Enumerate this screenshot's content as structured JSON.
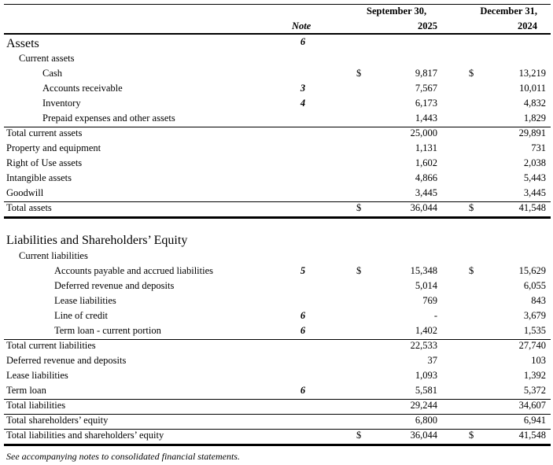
{
  "header": {
    "note_label": "Note",
    "col1_line1": "September 30,",
    "col1_line2": "2025",
    "col2_line1": "December 31,",
    "col2_line2": "2024"
  },
  "rows": [
    {
      "label": "Assets",
      "note": "6"
    },
    {
      "label": "Current assets"
    },
    {
      "label": "Cash",
      "d1": "$",
      "v1": "9,817",
      "d2": "$",
      "v2": "13,219"
    },
    {
      "label": "Accounts receivable",
      "note": "3",
      "v1": "7,567",
      "v2": "10,011"
    },
    {
      "label": "Inventory",
      "note": "4",
      "v1": "6,173",
      "v2": "4,832"
    },
    {
      "label": "Prepaid expenses and other assets",
      "v1": "1,443",
      "v2": "1,829"
    },
    {
      "label": "Total current assets",
      "v1": "25,000",
      "v2": "29,891"
    },
    {
      "label": "Property and equipment",
      "v1": "1,131",
      "v2": "731"
    },
    {
      "label": "Right of Use assets",
      "v1": "1,602",
      "v2": "2,038"
    },
    {
      "label": "Intangible assets",
      "v1": "4,866",
      "v2": "5,443"
    },
    {
      "label": "Goodwill",
      "v1": "3,445",
      "v2": "3,445"
    },
    {
      "label": "Total assets",
      "d1": "$",
      "v1": "36,044",
      "d2": "$",
      "v2": "41,548"
    },
    {
      "label": "Liabilities and Shareholders’ Equity"
    },
    {
      "label": "Current liabilities"
    },
    {
      "label": "Accounts payable and accrued liabilities",
      "note": "5",
      "d1": "$",
      "v1": "15,348",
      "d2": "$",
      "v2": "15,629"
    },
    {
      "label": "Deferred revenue and deposits",
      "v1": "5,014",
      "v2": "6,055"
    },
    {
      "label": "Lease liabilities",
      "v1": "769",
      "v2": "843"
    },
    {
      "label": "Line of credit",
      "note": "6",
      "v1": "-",
      "v2": "3,679"
    },
    {
      "label": "Term loan - current portion",
      "note": "6",
      "v1": "1,402",
      "v2": "1,535"
    },
    {
      "label": "Total current liabilities",
      "v1": "22,533",
      "v2": "27,740"
    },
    {
      "label": "Deferred revenue and deposits",
      "v1": "37",
      "v2": "103"
    },
    {
      "label": "Lease liabilities",
      "v1": "1,093",
      "v2": "1,392"
    },
    {
      "label": "Term loan",
      "note": "6",
      "v1": "5,581",
      "v2": "5,372"
    },
    {
      "label": "Total liabilities",
      "v1": "29,244",
      "v2": "34,607"
    },
    {
      "label": "Total shareholders’ equity",
      "v1": "6,800",
      "v2": "6,941"
    },
    {
      "label": "Total liabilities and shareholders’ equity",
      "d1": "$",
      "v1": "36,044",
      "d2": "$",
      "v2": "41,548"
    }
  ],
  "footnote": "See accompanying notes to consolidated financial statements."
}
